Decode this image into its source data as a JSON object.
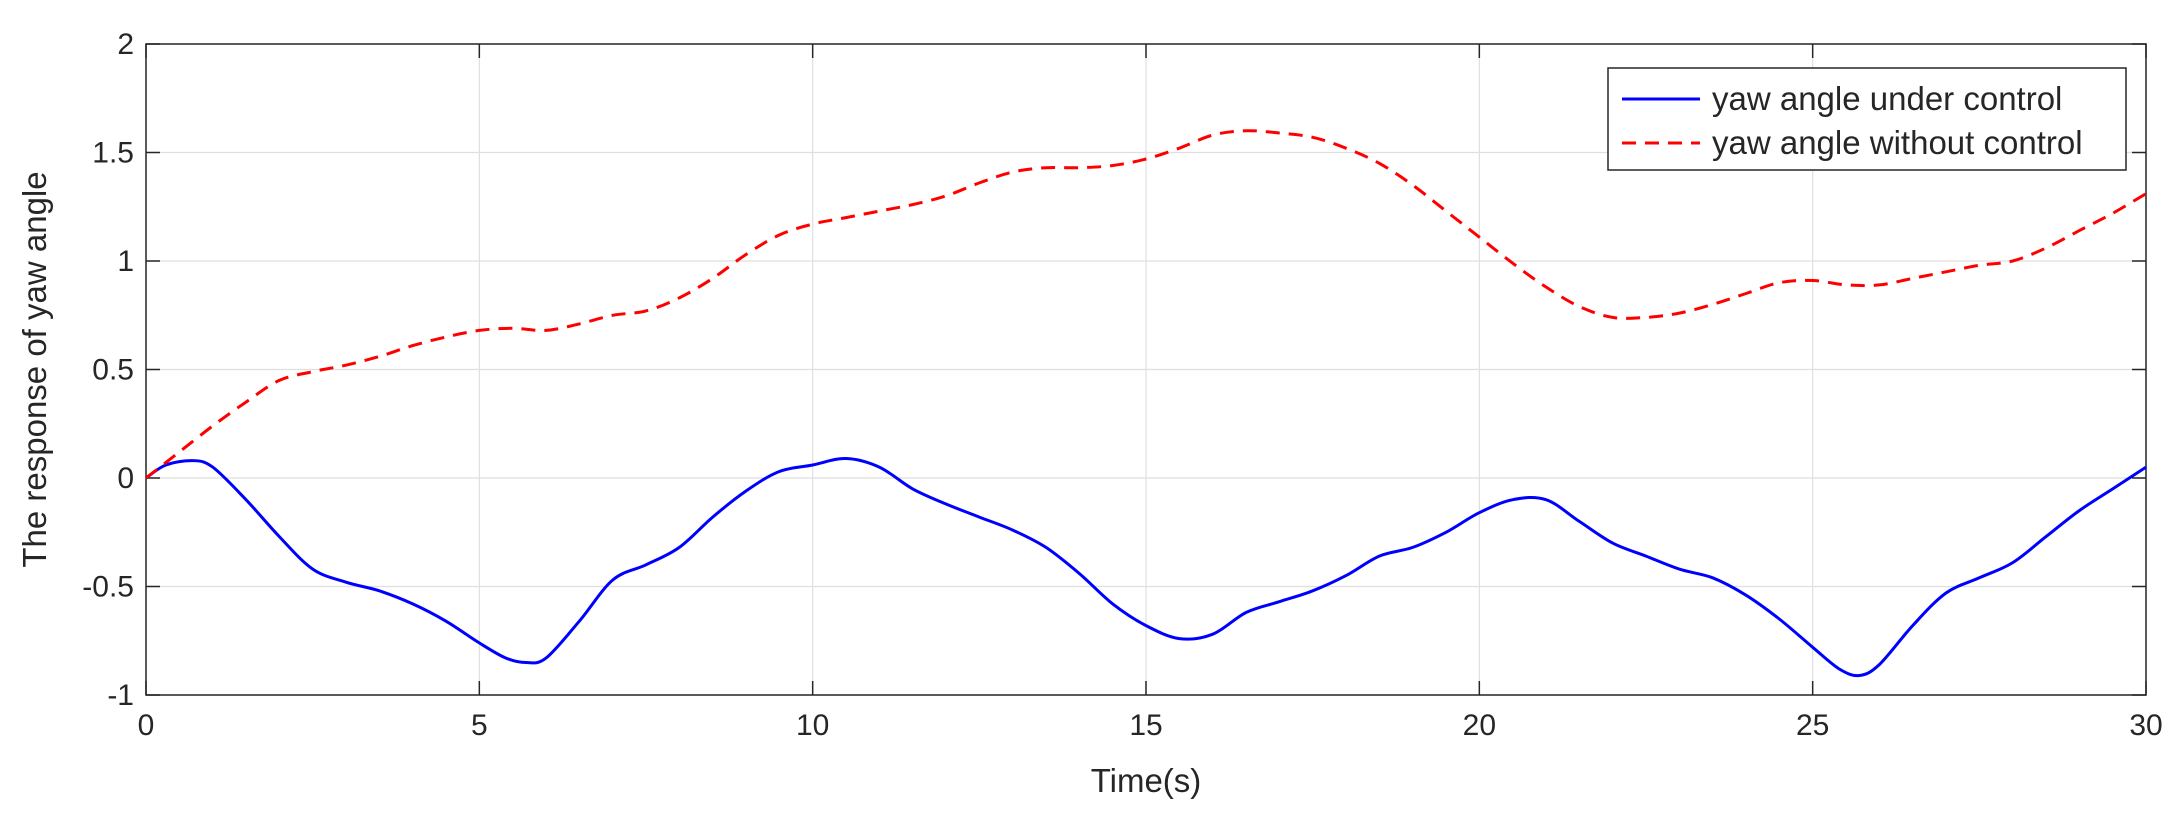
{
  "chart_data": {
    "type": "line",
    "xlabel": "Time(s)",
    "ylabel": "The response of yaw angle",
    "xlim": [
      0,
      30
    ],
    "ylim": [
      -1,
      2
    ],
    "xticks": [
      0,
      5,
      10,
      15,
      20,
      25,
      30
    ],
    "yticks": [
      -1,
      -0.5,
      0,
      0.5,
      1,
      1.5,
      2
    ],
    "grid": true,
    "legend_position": "top-right",
    "series": [
      {
        "name": "yaw angle under control",
        "color": "#0000ff",
        "style": "solid",
        "x": [
          0,
          0.3,
          0.7,
          1.0,
          1.5,
          2.0,
          2.5,
          3.0,
          3.5,
          4.0,
          4.5,
          5.0,
          5.4,
          5.7,
          6.0,
          6.5,
          7.0,
          7.5,
          8.0,
          8.5,
          9.0,
          9.5,
          10.0,
          10.5,
          11.0,
          11.5,
          12.0,
          12.5,
          13.0,
          13.5,
          14.0,
          14.5,
          15.0,
          15.5,
          16.0,
          16.5,
          17.0,
          17.5,
          18.0,
          18.5,
          19.0,
          19.5,
          20.0,
          20.5,
          21.0,
          21.5,
          22.0,
          22.5,
          23.0,
          23.5,
          24.0,
          24.5,
          25.0,
          25.4,
          25.7,
          26.0,
          26.5,
          27.0,
          27.5,
          28.0,
          28.5,
          29.0,
          29.5,
          30.0
        ],
        "y": [
          0,
          0.06,
          0.08,
          0.05,
          -0.1,
          -0.27,
          -0.42,
          -0.48,
          -0.52,
          -0.58,
          -0.66,
          -0.76,
          -0.83,
          -0.85,
          -0.83,
          -0.66,
          -0.47,
          -0.4,
          -0.32,
          -0.18,
          -0.06,
          0.03,
          0.06,
          0.09,
          0.05,
          -0.05,
          -0.12,
          -0.18,
          -0.24,
          -0.32,
          -0.44,
          -0.58,
          -0.68,
          -0.74,
          -0.72,
          -0.62,
          -0.57,
          -0.52,
          -0.45,
          -0.36,
          -0.32,
          -0.25,
          -0.16,
          -0.1,
          -0.1,
          -0.2,
          -0.3,
          -0.36,
          -0.42,
          -0.46,
          -0.54,
          -0.65,
          -0.78,
          -0.88,
          -0.91,
          -0.86,
          -0.68,
          -0.53,
          -0.46,
          -0.39,
          -0.27,
          -0.15,
          -0.05,
          0.05
        ]
      },
      {
        "name": "yaw angle without control",
        "color": "#ff0000",
        "style": "dashed",
        "x": [
          0,
          0.5,
          1.0,
          1.5,
          2.0,
          2.5,
          3.0,
          3.5,
          4.0,
          4.5,
          5.0,
          5.5,
          6.0,
          6.5,
          7.0,
          7.5,
          8.0,
          8.5,
          9.0,
          9.5,
          10.0,
          10.5,
          11.0,
          11.5,
          12.0,
          12.5,
          13.0,
          13.5,
          14.0,
          14.5,
          15.0,
          15.5,
          16.0,
          16.5,
          17.0,
          17.5,
          18.0,
          18.5,
          19.0,
          19.5,
          20.0,
          20.5,
          21.0,
          21.5,
          22.0,
          22.5,
          23.0,
          23.5,
          24.0,
          24.5,
          25.0,
          25.5,
          26.0,
          26.5,
          27.0,
          27.5,
          28.0,
          28.5,
          29.0,
          29.5,
          30.0
        ],
        "y": [
          0,
          0.12,
          0.24,
          0.35,
          0.45,
          0.49,
          0.52,
          0.56,
          0.61,
          0.65,
          0.68,
          0.69,
          0.68,
          0.71,
          0.75,
          0.77,
          0.83,
          0.92,
          1.03,
          1.12,
          1.17,
          1.2,
          1.23,
          1.26,
          1.3,
          1.36,
          1.41,
          1.43,
          1.43,
          1.44,
          1.47,
          1.52,
          1.58,
          1.6,
          1.59,
          1.57,
          1.52,
          1.45,
          1.35,
          1.23,
          1.11,
          0.99,
          0.88,
          0.79,
          0.74,
          0.74,
          0.76,
          0.8,
          0.85,
          0.9,
          0.91,
          0.89,
          0.89,
          0.92,
          0.95,
          0.98,
          1.0,
          1.06,
          1.14,
          1.22,
          1.31
        ]
      }
    ]
  }
}
